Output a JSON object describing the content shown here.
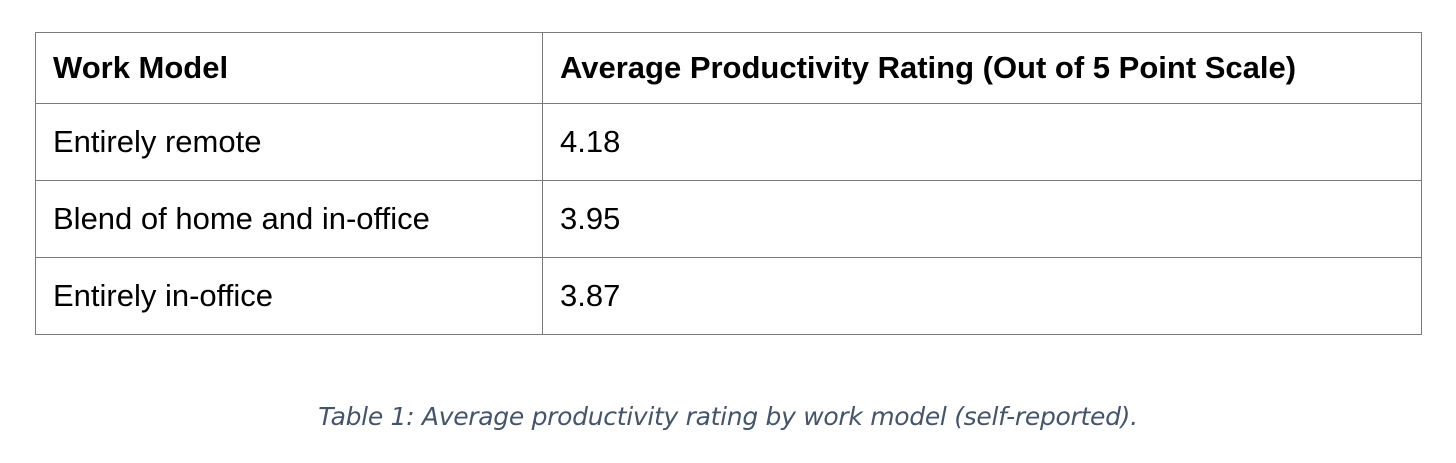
{
  "table": {
    "headers": [
      "Work Model",
      "Average Productivity Rating (Out of 5 Point Scale)"
    ],
    "rows": [
      [
        "Entirely remote",
        "4.18"
      ],
      [
        "Blend of home and in-office",
        "3.95"
      ],
      [
        "Entirely in-office",
        "3.87"
      ]
    ]
  },
  "caption": "Table 1: Average productivity rating by work model (self-reported)."
}
